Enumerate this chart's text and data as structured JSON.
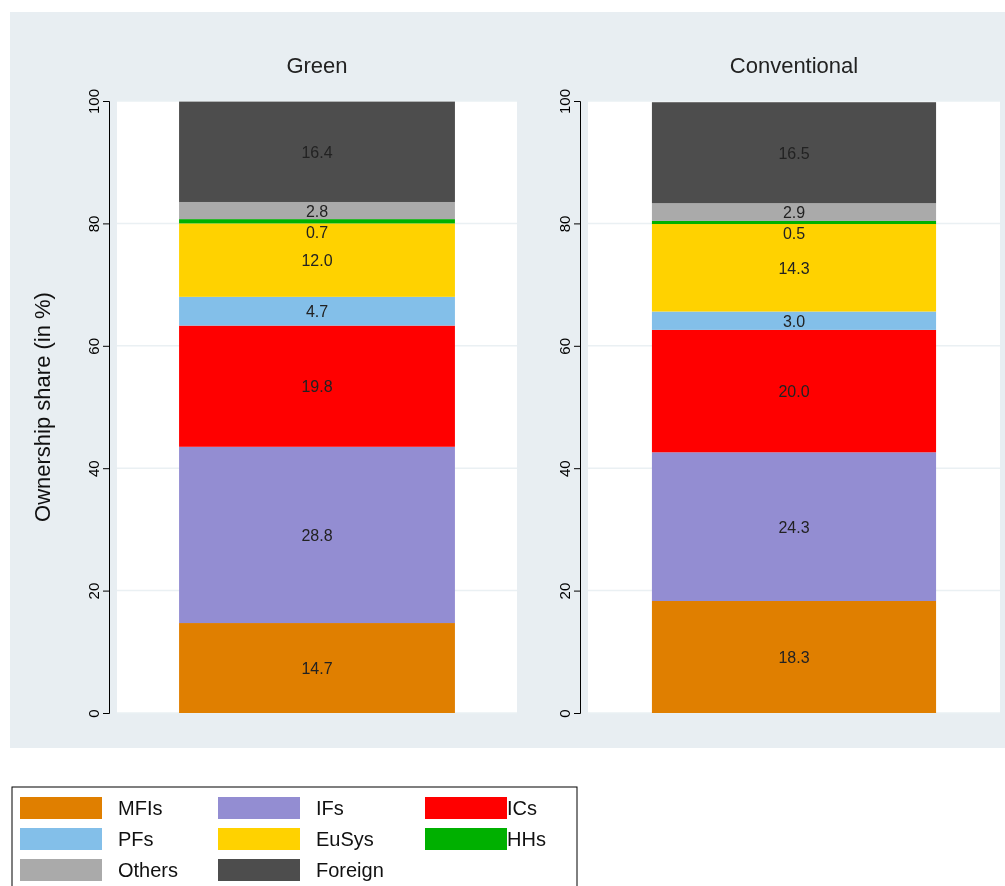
{
  "chart_data": [
    {
      "type": "bar",
      "title": "Green",
      "ylabel": "Ownership share (in %)",
      "categories": [
        null
      ],
      "stacked": true,
      "ylim": [
        0,
        100
      ],
      "yticks": [
        0,
        20,
        40,
        60,
        80,
        100
      ],
      "grid": "y",
      "tick_labels": "y",
      "legend": "bottom",
      "series": [
        {
          "name": "MFIs",
          "color": "#e07f00",
          "values": [
            14.7
          ],
          "value_labels": [
            "14.7"
          ]
        },
        {
          "name": "IFs",
          "color": "#938dd2",
          "values": [
            28.8
          ],
          "value_labels": [
            "28.8"
          ]
        },
        {
          "name": "ICs",
          "color": "#ff0000",
          "values": [
            19.8
          ],
          "value_labels": [
            "19.8"
          ]
        },
        {
          "name": "PFs",
          "color": "#83bfe9",
          "values": [
            4.7
          ],
          "value_labels": [
            "4.7"
          ]
        },
        {
          "name": "EuSys",
          "color": "#ffd200",
          "values": [
            12.0
          ],
          "value_labels": [
            "12.0"
          ]
        },
        {
          "name": "HHs",
          "color": "#00b000",
          "values": [
            0.7
          ],
          "value_labels": [
            "0.7"
          ]
        },
        {
          "name": "Others",
          "color": "#aaaaaa",
          "values": [
            2.8
          ],
          "value_labels": [
            "2.8"
          ]
        },
        {
          "name": "Foreign",
          "color": "#4d4d4d",
          "values": [
            16.4
          ],
          "value_labels": [
            "16.4"
          ]
        }
      ]
    },
    {
      "type": "bar",
      "title": "Conventional",
      "categories": [
        null
      ],
      "stacked": true,
      "ylim": [
        0,
        100
      ],
      "yticks": [
        0,
        20,
        40,
        60,
        80,
        100
      ],
      "grid": "y",
      "tick_labels": "y",
      "series": [
        {
          "color": "#e07f00",
          "values": [
            18.3
          ],
          "value_labels": [
            "18.3"
          ]
        },
        {
          "color": "#938dd2",
          "values": [
            24.3
          ],
          "value_labels": [
            "24.3"
          ]
        },
        {
          "color": "#ff0000",
          "values": [
            20.0
          ],
          "value_labels": [
            "20.0"
          ]
        },
        {
          "color": "#83bfe9",
          "values": [
            3.0
          ],
          "value_labels": [
            "3.0"
          ]
        },
        {
          "color": "#ffd200",
          "values": [
            14.3
          ],
          "value_labels": [
            "14.3"
          ]
        },
        {
          "color": "#00b000",
          "values": [
            0.5
          ],
          "value_labels": [
            "0.5"
          ]
        },
        {
          "color": "#aaaaaa",
          "values": [
            2.9
          ],
          "value_labels": [
            "2.9"
          ]
        },
        {
          "color": "#4d4d4d",
          "values": [
            16.5
          ],
          "value_labels": [
            "16.5"
          ]
        }
      ]
    }
  ]
}
